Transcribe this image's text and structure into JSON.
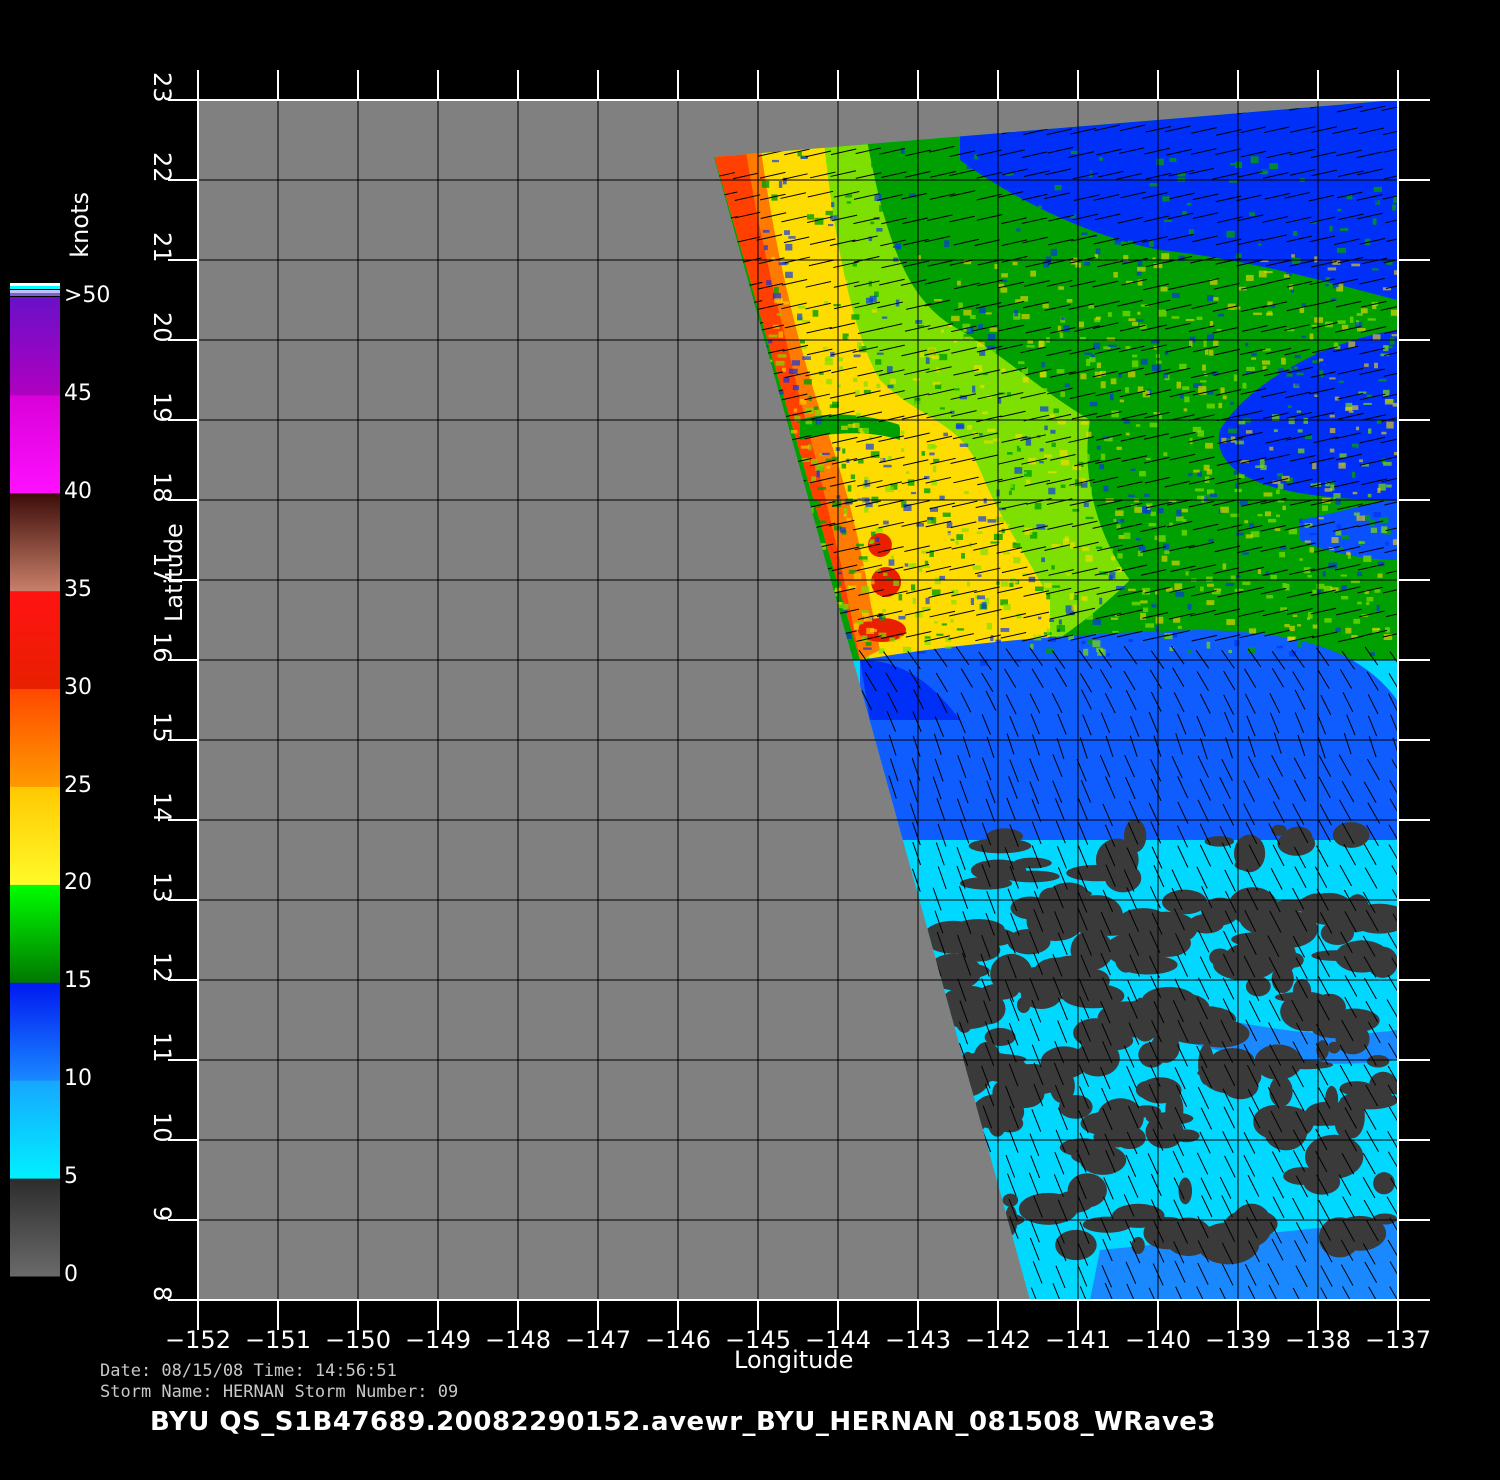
{
  "map": {
    "lon_range": [
      -152,
      -137
    ],
    "lat_range": [
      8,
      23
    ],
    "x_ticks": [
      "-152",
      "-151",
      "-150",
      "-149",
      "-148",
      "-147",
      "-146",
      "-145",
      "-144",
      "-143",
      "-142",
      "-141",
      "-140",
      "-139",
      "-138",
      "-137"
    ],
    "y_ticks": [
      "8",
      "9",
      "10",
      "11",
      "12",
      "13",
      "14",
      "15",
      "16",
      "17",
      "18",
      "19",
      "20",
      "21",
      "22",
      "23"
    ],
    "x_label": "Longitude",
    "y_label": "Latitude",
    "no_data_color": "#808080",
    "grid": true,
    "wind_barbs": true
  },
  "colorbar": {
    "unit": "knots",
    "ticks": [
      "0",
      "5",
      "10",
      "15",
      "20",
      "25",
      "30",
      "35",
      "40",
      "45",
      ">50"
    ],
    "bands": [
      {
        "range": [
          0,
          5
        ],
        "colors": [
          "#6a6a6a",
          "#2c2c2c"
        ]
      },
      {
        "range": [
          5,
          10
        ],
        "colors": [
          "#00f0ff",
          "#16a6ff"
        ]
      },
      {
        "range": [
          10,
          15
        ],
        "colors": [
          "#1a88ff",
          "#0018f0"
        ]
      },
      {
        "range": [
          15,
          20
        ],
        "colors": [
          "#007800",
          "#00ff00"
        ]
      },
      {
        "range": [
          20,
          25
        ],
        "colors": [
          "#fffa2a",
          "#ffc800"
        ]
      },
      {
        "range": [
          25,
          30
        ],
        "colors": [
          "#ff9a00",
          "#ff4800"
        ]
      },
      {
        "range": [
          30,
          35
        ],
        "colors": [
          "#e82000",
          "#ff1212"
        ]
      },
      {
        "range": [
          35,
          40
        ],
        "colors": [
          "#c8806a",
          "#3c0c08"
        ]
      },
      {
        "range": [
          40,
          45
        ],
        "colors": [
          "#ff10ff",
          "#d800d8"
        ]
      },
      {
        "range": [
          45,
          50
        ],
        "colors": [
          "#b000c0",
          "#6a10c8"
        ]
      }
    ]
  },
  "info": {
    "date_line": "Date: 08/15/08   Time: 14:56:51",
    "storm_line": "Storm  Name: HERNAN   Storm  Number: 09",
    "file_line": "BYU  QS_S1B47689.20082290152.avewr_BYU_HERNAN_081508_WRave3"
  }
}
